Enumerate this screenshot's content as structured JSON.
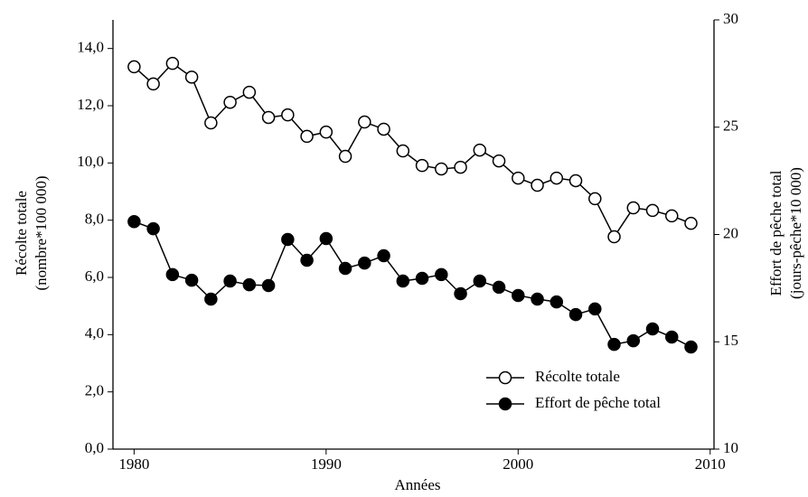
{
  "chart_data": {
    "type": "line",
    "x_label": "Années",
    "y_label": [
      "Récolte totale",
      "(nombre*100 000)"
    ],
    "y2_label": [
      "Effort de pêche total",
      "(jours-pêche*10 000)"
    ],
    "x": [
      1980,
      1981,
      1982,
      1983,
      1984,
      1985,
      1986,
      1987,
      1988,
      1989,
      1990,
      1991,
      1992,
      1993,
      1994,
      1995,
      1996,
      1997,
      1998,
      1999,
      2000,
      2001,
      2002,
      2003,
      2004,
      2005,
      2006,
      2007,
      2008,
      2009
    ],
    "series": [
      {
        "name": "Récolte totale",
        "color": "#000000",
        "marker": "open",
        "values": [
          13.36,
          12.76,
          13.48,
          13.0,
          11.4,
          12.12,
          12.47,
          11.59,
          11.68,
          10.93,
          11.08,
          10.23,
          11.43,
          11.18,
          10.42,
          9.91,
          9.79,
          9.85,
          10.45,
          10.07,
          9.47,
          9.22,
          9.47,
          9.38,
          8.75,
          7.42,
          8.43,
          8.34,
          8.15,
          7.89
        ]
      },
      {
        "name": "Effort de pêche total",
        "color": "#000000",
        "marker": "filled",
        "axis": "y2",
        "values": [
          20.6,
          20.27,
          18.13,
          17.87,
          16.99,
          17.83,
          17.66,
          17.62,
          19.77,
          18.8,
          19.81,
          18.42,
          18.67,
          19.01,
          17.83,
          17.96,
          18.13,
          17.24,
          17.83,
          17.54,
          17.16,
          16.99,
          16.86,
          16.27,
          16.53,
          14.88,
          15.05,
          15.6,
          15.22,
          14.76
        ]
      }
    ],
    "xlim": [
      1978.9,
      2010.2
    ],
    "xticks": [
      1980,
      1990,
      2000,
      2010
    ],
    "ylim": [
      0,
      15
    ],
    "yticks": [
      {
        "value": 0,
        "label": "0,0"
      },
      {
        "value": 2,
        "label": "2,0"
      },
      {
        "value": 4,
        "label": "4,0"
      },
      {
        "value": 6,
        "label": "6,0"
      },
      {
        "value": 8,
        "label": "8,0"
      },
      {
        "value": 10,
        "label": "10,0"
      },
      {
        "value": 12,
        "label": "12,0"
      },
      {
        "value": 14,
        "label": "14,0"
      }
    ],
    "y2lim": [
      10,
      30
    ],
    "y2ticks": [
      10,
      15,
      20,
      25,
      30
    ],
    "legend": "lower right"
  }
}
